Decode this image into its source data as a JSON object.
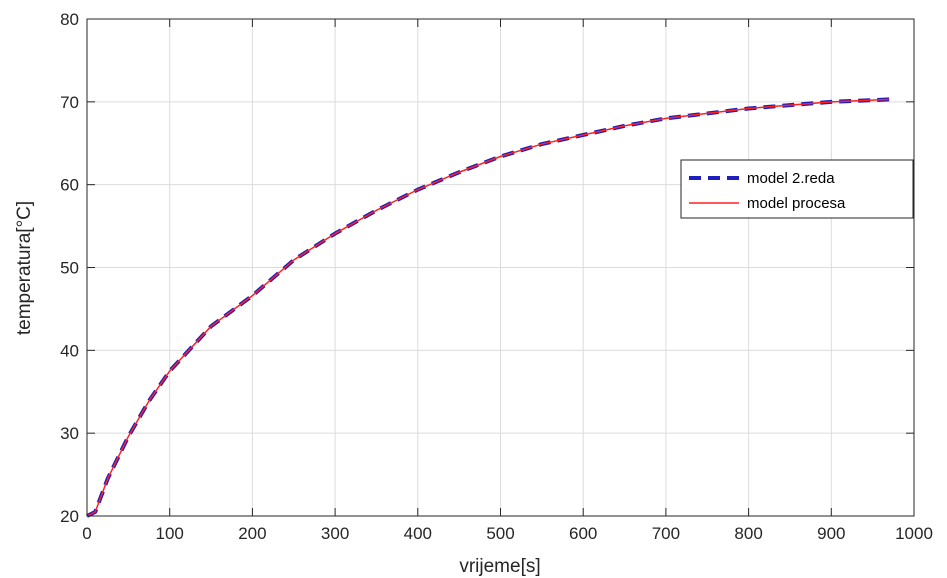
{
  "chart_data": {
    "type": "line",
    "xlabel": "vrijeme[s]",
    "ylabel": "temperatura[°C]",
    "xlim": [
      0,
      1000
    ],
    "ylim": [
      20,
      80
    ],
    "xticks": [
      0,
      100,
      200,
      300,
      400,
      500,
      600,
      700,
      800,
      900,
      1000
    ],
    "yticks": [
      20,
      30,
      40,
      50,
      60,
      70,
      80
    ],
    "grid": true,
    "legend_position": "right",
    "x": [
      0,
      10,
      25,
      50,
      75,
      100,
      150,
      200,
      250,
      300,
      350,
      400,
      450,
      500,
      550,
      600,
      650,
      700,
      750,
      800,
      850,
      900,
      950,
      970
    ],
    "series": [
      {
        "name": "model 2.reda",
        "style": "dashed",
        "color": "#1f1fbf",
        "values": [
          20.0,
          20.5,
          24.5,
          29.6,
          33.9,
          37.5,
          42.9,
          46.6,
          50.9,
          54.1,
          56.9,
          59.4,
          61.5,
          63.4,
          64.9,
          66.0,
          67.1,
          68.0,
          68.6,
          69.2,
          69.6,
          70.0,
          70.2,
          70.3
        ]
      },
      {
        "name": "model procesa",
        "style": "solid",
        "color": "#ff2020",
        "values": [
          20.0,
          20.5,
          24.5,
          29.6,
          33.9,
          37.5,
          42.9,
          46.6,
          50.9,
          54.1,
          56.9,
          59.4,
          61.5,
          63.4,
          64.9,
          66.0,
          67.1,
          68.0,
          68.6,
          69.2,
          69.6,
          70.0,
          70.2,
          70.3
        ]
      }
    ]
  }
}
